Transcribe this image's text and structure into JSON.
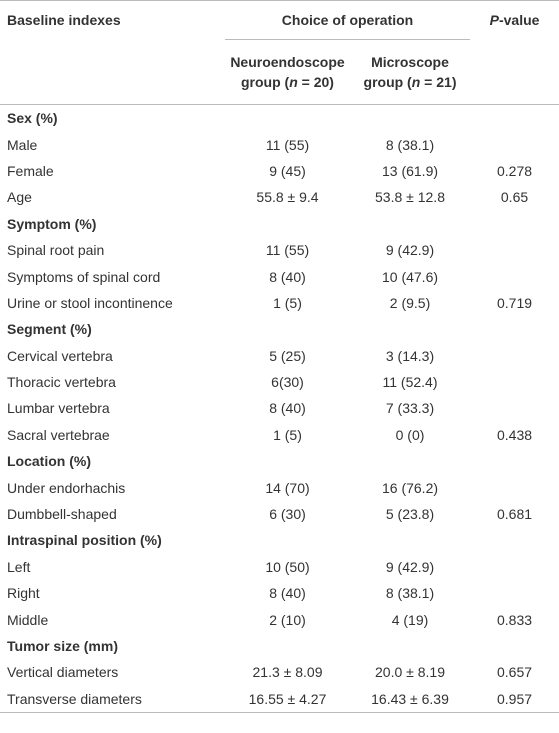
{
  "header": {
    "baseline": "Baseline indexes",
    "choice": "Choice of operation",
    "pvalue": [
      {
        "text": "P",
        "italic": true
      },
      {
        "text": "-value"
      }
    ],
    "neuro": [
      {
        "text": "Neuroendoscope"
      },
      {
        "text": "group ("
      },
      {
        "text": "n",
        "italic": true
      },
      {
        "text": " = 20)"
      }
    ],
    "micro": [
      {
        "text": "Microscope"
      },
      {
        "text": "group ("
      },
      {
        "text": "n",
        "italic": true
      },
      {
        "text": " = 21)"
      }
    ]
  },
  "sections": [
    {
      "title": "Sex (%)",
      "rows": [
        [
          "Male",
          "11 (55)",
          "8 (38.1)",
          null
        ],
        [
          "Female",
          "9 (45)",
          "13 (61.9)",
          "0.278"
        ],
        [
          "Age",
          "55.8 ± 9.4",
          "53.8 ± 12.8",
          "0.65"
        ]
      ]
    },
    {
      "title": "Symptom (%)",
      "rows": [
        [
          "Spinal root pain",
          "11 (55)",
          "9 (42.9)",
          null
        ],
        [
          "Symptoms of spinal cord",
          "8 (40)",
          "10 (47.6)",
          null
        ],
        [
          "Urine or stool incontinence",
          "1 (5)",
          "2 (9.5)",
          "0.719"
        ]
      ]
    },
    {
      "title": "Segment (%)",
      "rows": [
        [
          "Cervical vertebra",
          "5 (25)",
          "3 (14.3)",
          null
        ],
        [
          "Thoracic vertebra",
          "6(30)",
          "11 (52.4)",
          null
        ],
        [
          "Lumbar vertebra",
          "8 (40)",
          "7 (33.3)",
          null
        ],
        [
          "Sacral vertebrae",
          "1 (5)",
          "0 (0)",
          "0.438"
        ]
      ]
    },
    {
      "title": "Location (%)",
      "rows": [
        [
          "Under endorhachis",
          "14 (70)",
          "16 (76.2)",
          null
        ],
        [
          "Dumbbell-shaped",
          "6 (30)",
          "5 (23.8)",
          "0.681"
        ]
      ]
    },
    {
      "title": "Intraspinal position (%)",
      "rows": [
        [
          "Left",
          "10 (50)",
          "9 (42.9)",
          null
        ],
        [
          "Right",
          "8 (40)",
          "8 (38.1)",
          null
        ],
        [
          "Middle",
          "2 (10)",
          "4 (19)",
          "0.833"
        ]
      ]
    },
    {
      "title": "Tumor size (mm)",
      "rows": [
        [
          "Vertical diameters",
          "21.3 ± 8.09",
          "20.0 ± 8.19",
          "0.657"
        ],
        [
          "Transverse diameters",
          "16.55 ± 4.27",
          "16.43 ± 6.39",
          "0.957"
        ]
      ]
    }
  ]
}
